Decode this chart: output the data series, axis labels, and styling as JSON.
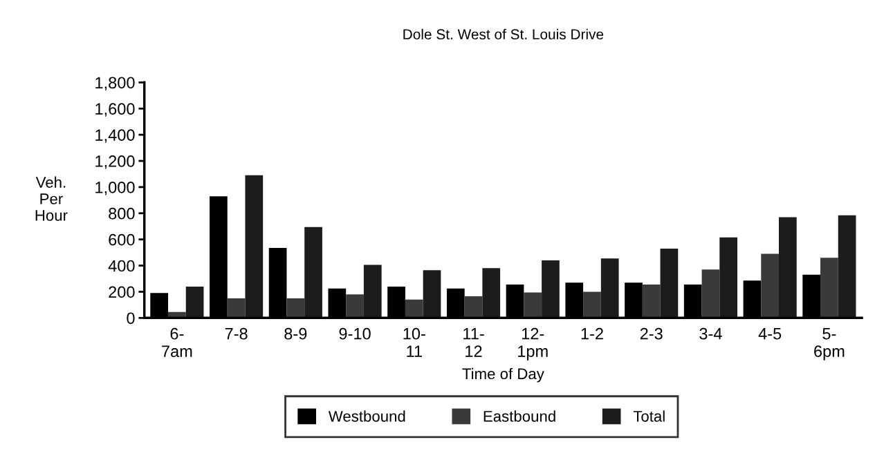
{
  "chart_data": {
    "type": "bar",
    "title": "Dole St. West of St. Louis Drive",
    "xlabel": "Time of Day",
    "ylabel": "Veh.\nPer\nHour",
    "categories": [
      "6-\n7am",
      "7-8",
      "8-9",
      "9-10",
      "10-\n11",
      "11-\n12",
      "12-\n1pm",
      "1-2",
      "2-3",
      "3-4",
      "4-5",
      "5-\n6pm"
    ],
    "series": [
      {
        "name": "Westbound",
        "color": "#000000",
        "values": [
          190,
          930,
          535,
          225,
          240,
          225,
          255,
          270,
          270,
          255,
          285,
          330
        ]
      },
      {
        "name": "Eastbound",
        "color": "#3a3a3a",
        "values": [
          45,
          150,
          150,
          180,
          140,
          165,
          195,
          200,
          255,
          370,
          490,
          460
        ]
      },
      {
        "name": "Total",
        "color": "#1c1c1c",
        "values": [
          240,
          1090,
          695,
          405,
          365,
          380,
          440,
          455,
          530,
          615,
          770,
          785
        ]
      }
    ],
    "ylim": [
      0,
      1800
    ],
    "yticks": [
      0,
      200,
      400,
      600,
      800,
      {
        "value": 1000,
        "label": "1,000"
      },
      {
        "value": 1200,
        "label": "1,200"
      },
      {
        "value": 1400,
        "label": "1,400"
      },
      {
        "value": 1600,
        "label": "1,600"
      },
      {
        "value": 1800,
        "label": "1,800"
      }
    ],
    "grid": false,
    "legend": "bottom"
  }
}
